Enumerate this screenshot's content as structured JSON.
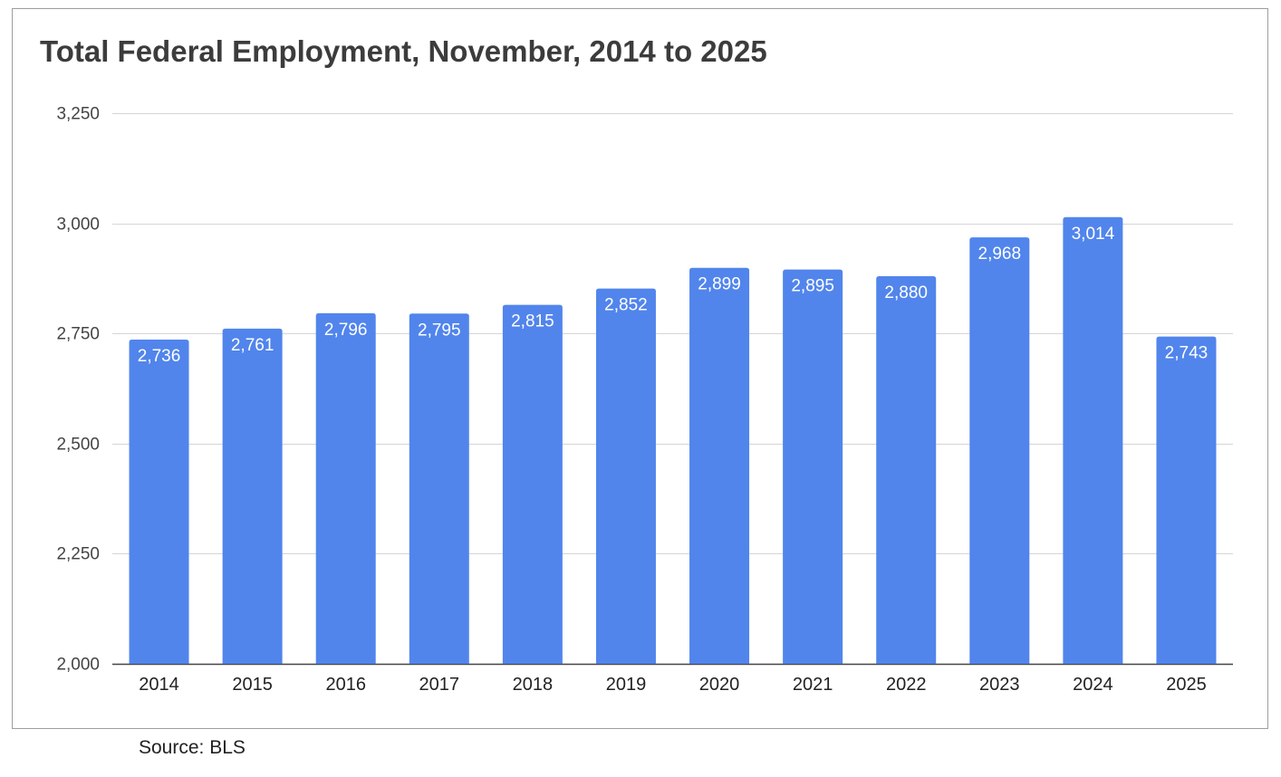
{
  "colors": {
    "bar": "#5185EC",
    "grid": "#D5D5D5",
    "axis": "#444444"
  },
  "source_label": "Source: BLS",
  "chart_data": {
    "type": "bar",
    "title": "Total Federal Employment, November, 2014 to 2025",
    "xlabel": "",
    "ylabel": "",
    "categories": [
      "2014",
      "2015",
      "2016",
      "2017",
      "2018",
      "2019",
      "2020",
      "2021",
      "2022",
      "2023",
      "2024",
      "2025"
    ],
    "values": [
      2736,
      2761,
      2796,
      2795,
      2815,
      2852,
      2899,
      2895,
      2880,
      2968,
      3014,
      2743
    ],
    "value_labels": [
      "2,736",
      "2,761",
      "2,796",
      "2,795",
      "2,815",
      "2,852",
      "2,899",
      "2,895",
      "2,880",
      "2,968",
      "3,014",
      "2,743"
    ],
    "ylim": [
      2000,
      3250
    ],
    "yticks": [
      2000,
      2250,
      2500,
      2750,
      3000,
      3250
    ],
    "ytick_labels": [
      "2,000",
      "2,250",
      "2,500",
      "2,750",
      "3,000",
      "3,250"
    ],
    "grid": true,
    "legend": "none"
  }
}
